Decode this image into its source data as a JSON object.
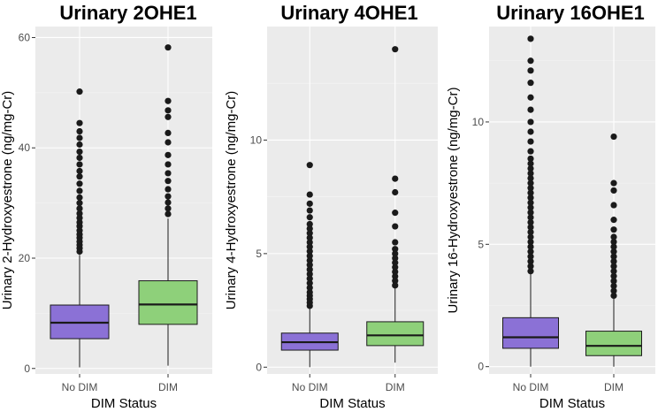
{
  "chart_data": [
    {
      "type": "boxplot",
      "title": "Urinary 2OHE1",
      "xlabel": "DIM Status",
      "ylabel": "Urinary 2-Hydroxyestrone (ng/mg-Cr)",
      "categories": [
        "No DIM",
        "DIM"
      ],
      "ylim": [
        -1,
        62
      ],
      "yticks": [
        0,
        20,
        40,
        60
      ],
      "ytick_labels": [
        "0",
        "20",
        "40",
        "60"
      ],
      "boxes": [
        {
          "category": "No DIM",
          "fill": "#8b71d6",
          "min": 0.2,
          "q1": 5.4,
          "median": 8.3,
          "q3": 11.5,
          "whisker_high": 20.6,
          "outliers": [
            21.2,
            21.8,
            22.4,
            23.0,
            23.7,
            24.3,
            25.0,
            25.8,
            26.5,
            27.3,
            28.1,
            29.0,
            30.0,
            31.0,
            32.2,
            33.5,
            34.8,
            35.8,
            37.0,
            38.2,
            39.3,
            40.6,
            41.8,
            43.0,
            44.5,
            50.2
          ]
        },
        {
          "category": "DIM",
          "fill": "#8ed07a",
          "min": 0.5,
          "q1": 8.0,
          "median": 11.6,
          "q3": 15.9,
          "whisker_high": 27.2,
          "outliers": [
            28.0,
            29.0,
            30.1,
            31.2,
            32.5,
            34.0,
            35.4,
            37.0,
            38.7,
            41.0,
            42.7,
            45.6,
            46.8,
            48.5,
            58.2
          ]
        }
      ]
    },
    {
      "type": "boxplot",
      "title": "Urinary 4OHE1",
      "xlabel": "DIM Status",
      "ylabel": "Urinary 4-Hydroxyestrone (ng/mg-Cr)",
      "categories": [
        "No DIM",
        "DIM"
      ],
      "ylim": [
        -0.3,
        15.0
      ],
      "yticks": [
        0,
        5,
        10
      ],
      "ytick_labels": [
        "0",
        "5",
        "10"
      ],
      "boxes": [
        {
          "category": "No DIM",
          "fill": "#8b71d6",
          "min": 0.0,
          "q1": 0.75,
          "median": 1.1,
          "q3": 1.5,
          "whisker_high": 2.6,
          "outliers": [
            2.7,
            2.85,
            3.0,
            3.15,
            3.3,
            3.5,
            3.7,
            3.9,
            4.1,
            4.3,
            4.5,
            4.7,
            4.9,
            5.1,
            5.3,
            5.5,
            5.7,
            5.9,
            6.1,
            6.3,
            6.6,
            6.9,
            7.2,
            7.6,
            8.9
          ]
        },
        {
          "category": "DIM",
          "fill": "#8ed07a",
          "min": 0.2,
          "q1": 0.95,
          "median": 1.4,
          "q3": 2.0,
          "whisker_high": 3.5,
          "outliers": [
            3.6,
            3.8,
            4.0,
            4.2,
            4.4,
            4.6,
            4.8,
            5.0,
            5.2,
            5.5,
            6.2,
            6.8,
            7.7,
            8.3,
            14.0
          ]
        }
      ]
    },
    {
      "type": "boxplot",
      "title": "Urinary 16OHE1",
      "xlabel": "DIM Status",
      "ylabel": "Urinary 16-Hydroxyestrone (ng/mg-Cr)",
      "categories": [
        "No DIM",
        "DIM"
      ],
      "ylim": [
        -0.3,
        13.9
      ],
      "yticks": [
        0,
        5,
        10
      ],
      "ytick_labels": [
        "0",
        "5",
        "10"
      ],
      "boxes": [
        {
          "category": "No DIM",
          "fill": "#8b71d6",
          "min": 0.0,
          "q1": 0.75,
          "median": 1.2,
          "q3": 2.0,
          "whisker_high": 3.8,
          "outliers": [
            3.9,
            4.1,
            4.3,
            4.5,
            4.7,
            4.9,
            5.1,
            5.3,
            5.5,
            5.7,
            5.9,
            6.1,
            6.3,
            6.5,
            6.7,
            6.9,
            7.1,
            7.3,
            7.5,
            7.7,
            7.9,
            8.1,
            8.3,
            8.5,
            8.8,
            9.2,
            9.6,
            10.0,
            10.5,
            11.0,
            11.6,
            12.1,
            12.5,
            13.4
          ]
        },
        {
          "category": "DIM",
          "fill": "#8ed07a",
          "min": 0.0,
          "q1": 0.45,
          "median": 0.85,
          "q3": 1.45,
          "whisker_high": 2.8,
          "outliers": [
            2.9,
            3.1,
            3.3,
            3.5,
            3.7,
            3.9,
            4.1,
            4.3,
            4.5,
            4.7,
            4.9,
            5.1,
            5.3,
            5.6,
            6.0,
            6.6,
            7.2,
            7.5,
            9.4
          ]
        }
      ]
    }
  ]
}
